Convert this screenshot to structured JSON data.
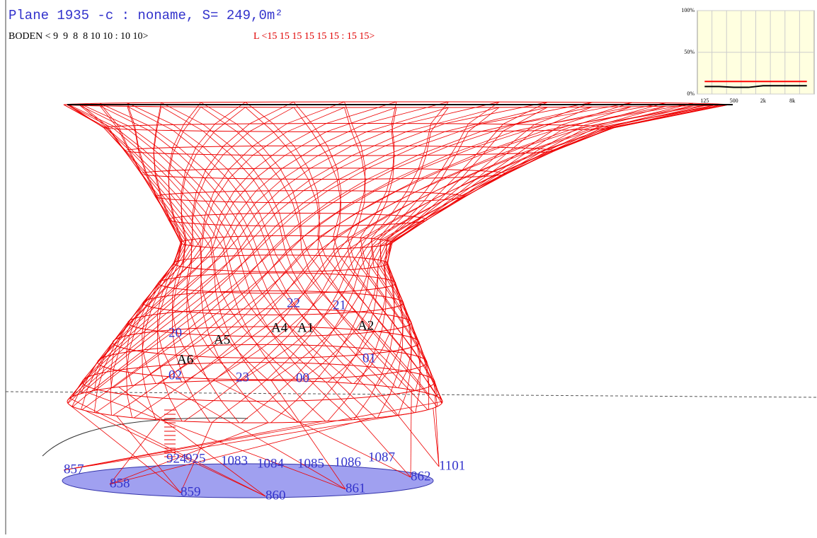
{
  "header": {
    "title": "Plane 1935 -c : noname, S= 249,0m²",
    "floor_line": "BODEN < 9  9  8  8 10 10 : 10 10>",
    "level_line": "L <15 15 15 15 15 15 : 15 15>"
  },
  "inset_chart": {
    "ylim": [
      0,
      100
    ],
    "yticks": [
      {
        "value": 100,
        "label": "100%"
      },
      {
        "value": 50,
        "label": "50%"
      },
      {
        "value": 0,
        "label": "0%"
      }
    ],
    "xticks": [
      "125",
      "500",
      "2k",
      "8k"
    ],
    "series": [
      {
        "color": "#ff0000",
        "values": [
          15,
          15,
          15,
          15,
          15,
          15,
          15,
          15
        ]
      },
      {
        "color": "#000000",
        "values": [
          9,
          9,
          8,
          8,
          10,
          10,
          10,
          10
        ]
      }
    ]
  },
  "point_labels": [
    "857",
    "858",
    "859",
    "860",
    "861",
    "862",
    "1101",
    "1087",
    "1086",
    "1085",
    "1084",
    "1083",
    "925",
    "924"
  ],
  "source_labels": [
    "A5",
    "A6",
    "A4",
    "A1",
    "A2"
  ],
  "receiver_labels": [
    "20",
    "22",
    "21",
    "01",
    "02",
    "23",
    "00"
  ]
}
